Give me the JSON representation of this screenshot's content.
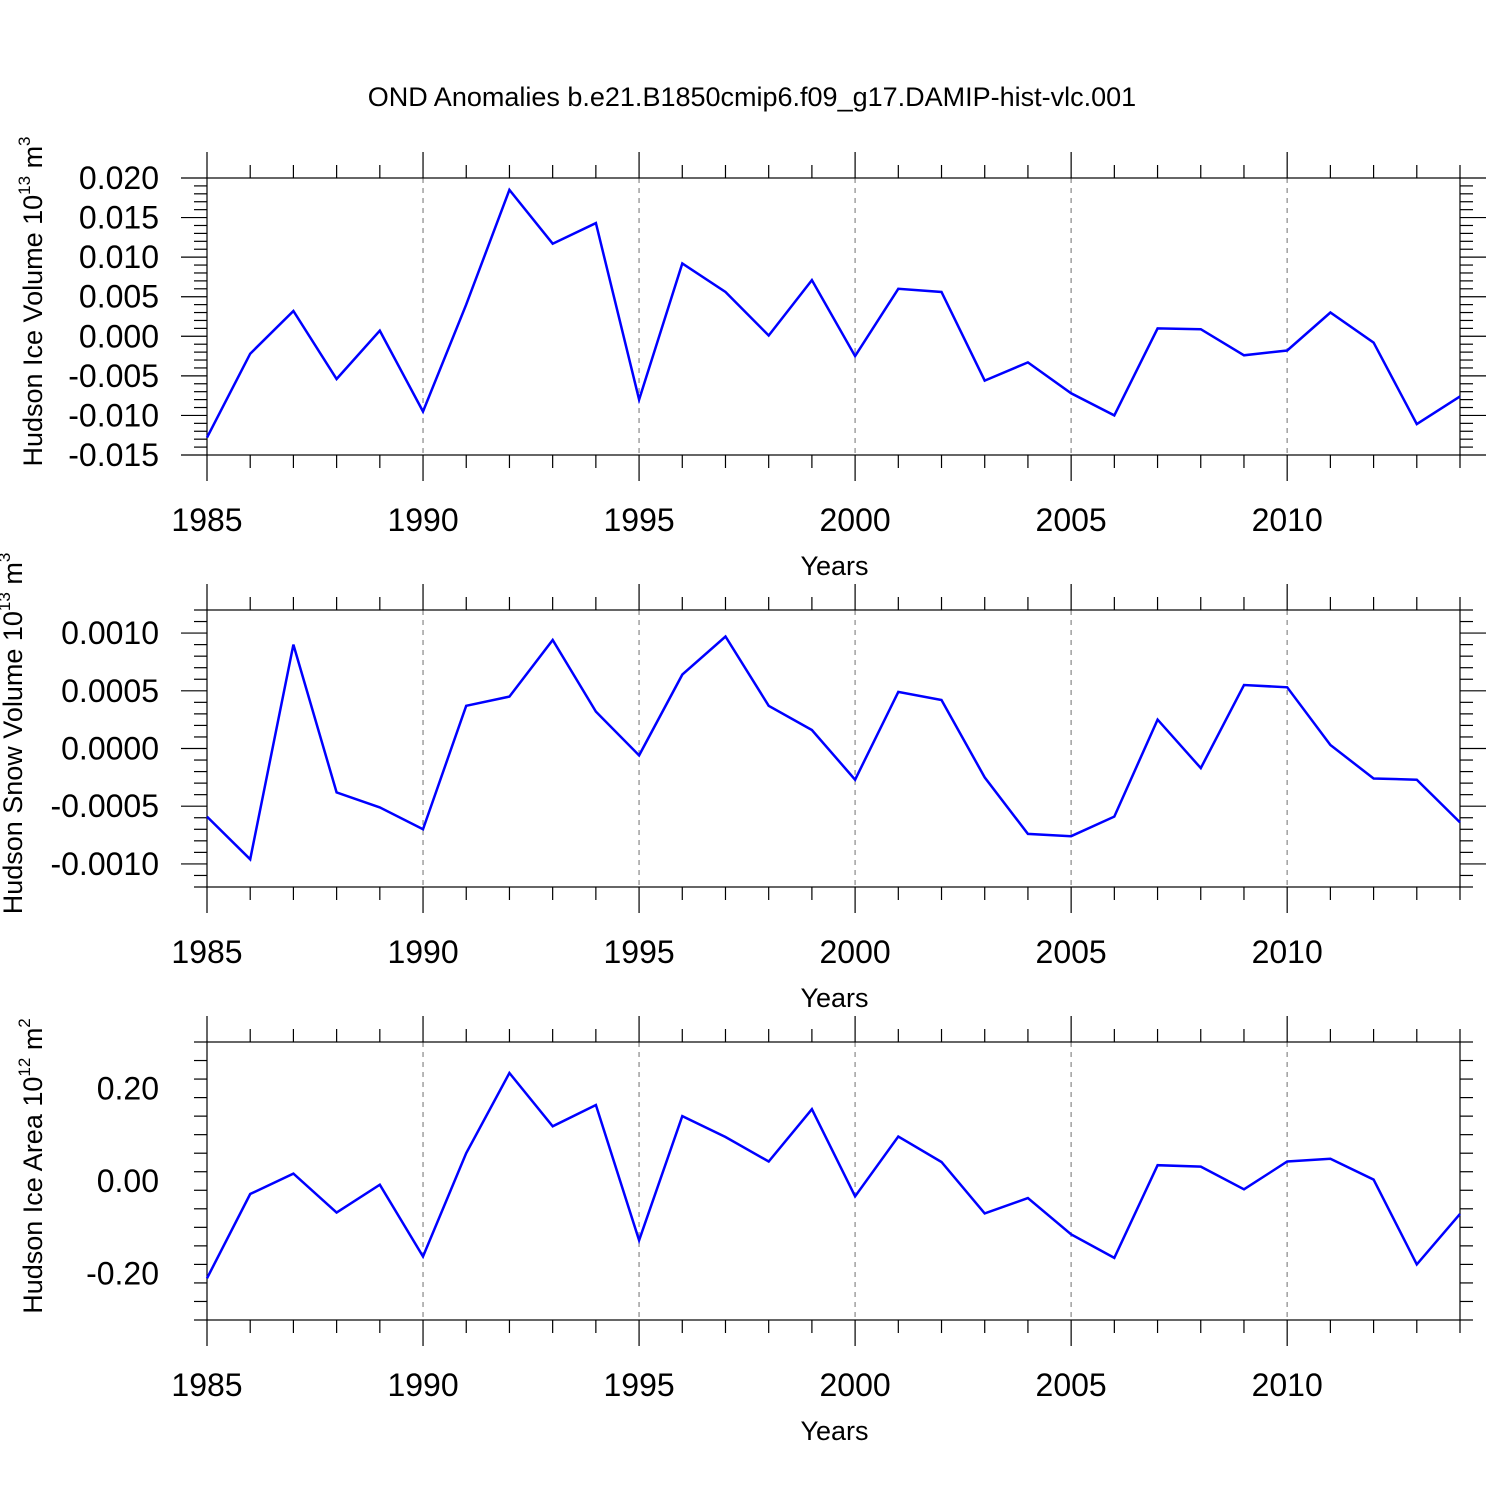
{
  "title": "OND Anomalies b.e21.B1850cmip6.f09_g17.DAMIP-hist-vlc.001",
  "colors": {
    "line": "#0000ff",
    "axis": "#000000",
    "grid": "#a0a0a0"
  },
  "chart_data": [
    {
      "type": "line",
      "ylabel_main": "Hudson Ice Volume 10",
      "ylabel_exp": "13",
      "ylabel_unit": "m",
      "ylabel_unit_exp": "3",
      "xlabel": "Years",
      "xlim": [
        1985,
        2014
      ],
      "ylim": [
        -0.015,
        0.02
      ],
      "xticks": [
        1985,
        1990,
        1995,
        2000,
        2005,
        2010
      ],
      "yticks": [
        -0.015,
        -0.01,
        -0.005,
        0.0,
        0.005,
        0.01,
        0.015,
        0.02
      ],
      "ytick_labels": [
        "-0.015",
        "-0.010",
        "-0.005",
        "0.000",
        "0.005",
        "0.010",
        "0.015",
        "0.020"
      ],
      "grid_x": true,
      "x": [
        1985,
        1986,
        1987,
        1988,
        1989,
        1990,
        1991,
        1992,
        1993,
        1994,
        1995,
        1996,
        1997,
        1998,
        1999,
        2000,
        2001,
        2002,
        2003,
        2004,
        2005,
        2006,
        2007,
        2008,
        2009,
        2010,
        2011,
        2012,
        2013,
        2014
      ],
      "values": [
        -0.0128,
        -0.0022,
        0.0032,
        -0.0054,
        0.0007,
        -0.0095,
        0.004,
        0.0185,
        0.0117,
        0.0143,
        -0.008,
        0.0092,
        0.0056,
        0.0001,
        0.0071,
        -0.0025,
        0.006,
        0.0056,
        -0.0056,
        -0.0033,
        -0.0072,
        -0.01,
        0.001,
        0.0009,
        -0.0024,
        -0.0018,
        0.003,
        -0.0008,
        -0.0111,
        -0.0076
      ]
    },
    {
      "type": "line",
      "ylabel_main": "Hudson Snow Volume 10",
      "ylabel_exp": "13",
      "ylabel_unit": "m",
      "ylabel_unit_exp": "3",
      "xlabel": "Years",
      "xlim": [
        1985,
        2014
      ],
      "ylim": [
        -0.0012,
        0.0012
      ],
      "xticks": [
        1985,
        1990,
        1995,
        2000,
        2005,
        2010
      ],
      "yticks": [
        -0.001,
        -0.0005,
        0.0,
        0.0005,
        0.001
      ],
      "ytick_labels": [
        "-0.0010",
        "-0.0005",
        "0.0000",
        "0.0005",
        "0.0010"
      ],
      "grid_x": true,
      "x": [
        1985,
        1986,
        1987,
        1988,
        1989,
        1990,
        1991,
        1992,
        1993,
        1994,
        1995,
        1996,
        1997,
        1998,
        1999,
        2000,
        2001,
        2002,
        2003,
        2004,
        2005,
        2006,
        2007,
        2008,
        2009,
        2010,
        2011,
        2012,
        2013,
        2014
      ],
      "values": [
        -0.00059,
        -0.00096,
        0.0009,
        -0.00038,
        -0.00051,
        -0.0007,
        0.00037,
        0.00045,
        0.00094,
        0.00032,
        -6e-05,
        0.00064,
        0.00097,
        0.00037,
        0.00016,
        -0.00027,
        0.00049,
        0.00042,
        -0.00025,
        -0.00074,
        -0.00076,
        -0.00059,
        0.00025,
        -0.00017,
        0.00055,
        0.00053,
        3e-05,
        -0.00026,
        -0.00027,
        -0.00064
      ]
    },
    {
      "type": "line",
      "ylabel_main": "Hudson Ice Area 10",
      "ylabel_exp": "12",
      "ylabel_unit": "m",
      "ylabel_unit_exp": "2",
      "xlabel": "Years",
      "xlim": [
        1985,
        2014
      ],
      "ylim": [
        -0.3,
        0.3
      ],
      "xticks": [
        1985,
        1990,
        1995,
        2000,
        2005,
        2010
      ],
      "yticks": [
        -0.2,
        0.0,
        0.2
      ],
      "ytick_labels": [
        "-0.20",
        "0.00",
        "0.20"
      ],
      "grid_x": true,
      "x": [
        1985,
        1986,
        1987,
        1988,
        1989,
        1990,
        1991,
        1992,
        1993,
        1994,
        1995,
        1996,
        1997,
        1998,
        1999,
        2000,
        2001,
        2002,
        2003,
        2004,
        2005,
        2006,
        2007,
        2008,
        2009,
        2010,
        2011,
        2012,
        2013,
        2014
      ],
      "values": [
        -0.21,
        -0.028,
        0.016,
        -0.068,
        -0.008,
        -0.163,
        0.06,
        0.233,
        0.118,
        0.164,
        -0.128,
        0.14,
        0.095,
        0.042,
        0.155,
        -0.033,
        0.096,
        0.041,
        -0.07,
        -0.037,
        -0.115,
        -0.166,
        0.034,
        0.031,
        -0.018,
        0.042,
        0.048,
        0.003,
        -0.18,
        -0.071
      ]
    }
  ]
}
